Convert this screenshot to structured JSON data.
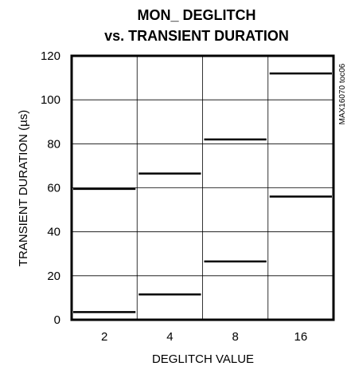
{
  "chart_data": {
    "type": "line",
    "title_line1": "MON_ DEGLITCH",
    "title_line2": "vs. TRANSIENT DURATION",
    "xlabel": "DEGLITCH VALUE",
    "ylabel": "TRANSIENT DURATION (µs)",
    "categories": [
      "2",
      "4",
      "8",
      "16"
    ],
    "ylim": [
      0,
      120
    ],
    "yticks": [
      0,
      20,
      40,
      60,
      80,
      100,
      120
    ],
    "grid": true,
    "legend": "none",
    "side_code": "MAX16070 toc06",
    "series": [
      {
        "values": [
          59.5,
          66.5,
          82,
          112
        ]
      },
      {
        "values": [
          3.5,
          11.5,
          26.5,
          56
        ]
      }
    ],
    "line_color": "#000000"
  }
}
